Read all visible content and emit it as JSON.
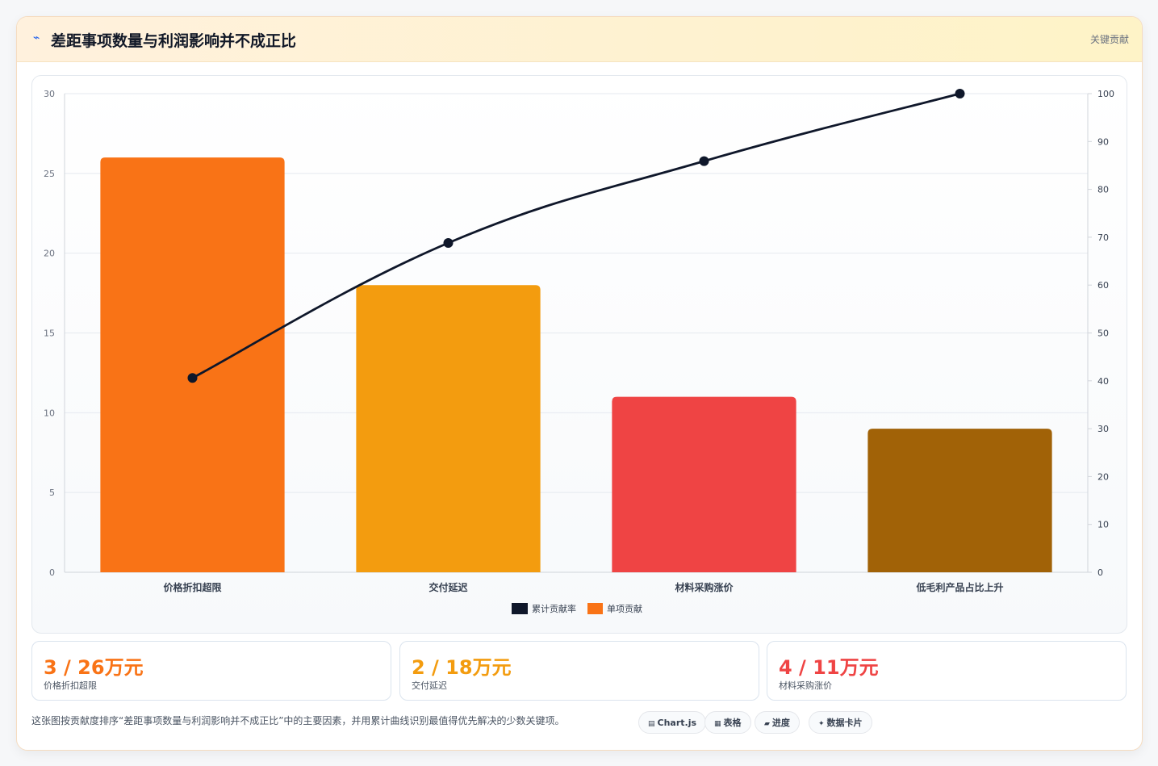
{
  "header": {
    "title": "差距事项数量与利润影响并不成正比",
    "right_label": "关键贡献"
  },
  "chart_data": {
    "type": "bar",
    "categories": [
      "价格折扣超限",
      "交付延迟",
      "材料采购涨价",
      "低毛利产品占比上升"
    ],
    "series": [
      {
        "name": "累计贡献率",
        "type": "line",
        "axis": "right",
        "values": [
          40.6,
          68.8,
          85.9,
          100
        ],
        "color": "#0f172a"
      },
      {
        "name": "单项贡献",
        "type": "bar",
        "axis": "left",
        "values": [
          26,
          18,
          11,
          9
        ],
        "colors": [
          "#f97316",
          "#f39c0f",
          "#ef4444",
          "#a16207"
        ]
      }
    ],
    "ylim": [
      0,
      30
    ],
    "y_ticks": [
      0,
      5,
      10,
      15,
      20,
      25,
      30
    ],
    "y2lim": [
      0,
      100
    ],
    "y2_ticks": [
      0,
      10,
      20,
      30,
      40,
      50,
      60,
      70,
      80,
      90,
      100
    ],
    "grid": true,
    "legend": "bottom"
  },
  "kpis": [
    {
      "value": "3 / 26万元",
      "label": "价格折扣超限",
      "color": "#f97316"
    },
    {
      "value": "2 / 18万元",
      "label": "交付延迟",
      "color": "#f39c0f"
    },
    {
      "value": "4 / 11万元",
      "label": "材料采购涨价",
      "color": "#ef4444"
    }
  ],
  "footer": {
    "note": "这张图按贡献度排序“差距事项数量与利润影响并不成正比”中的主要因素，并用累计曲线识别最值得优先解决的少数关键项。",
    "tags": [
      {
        "icon": "▤",
        "label": "Chart.js"
      },
      {
        "icon": "▦",
        "label": "表格"
      },
      {
        "icon": "▰",
        "label": "进度"
      },
      {
        "icon": "✦",
        "label": "数据卡片"
      }
    ]
  }
}
